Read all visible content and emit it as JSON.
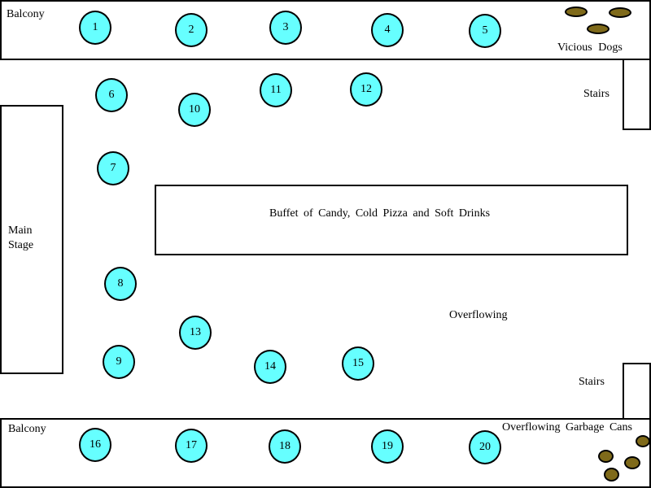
{
  "colors": {
    "table_fill": "#66ffff",
    "blob_fill": "#7f6a1a",
    "line": "#000000",
    "background": "#ffffff"
  },
  "labels": {
    "balcony_top": "Balcony",
    "balcony_bottom": "Balcony",
    "vicious_dogs": "Vicious Dogs",
    "stairs_top": "Stairs",
    "stairs_bottom": "Stairs",
    "main_stage": "Main\nStage",
    "buffet": "Buffet of Candy, Cold Pizza and Soft Drinks",
    "overflowing": "Overflowing",
    "overflowing_garbage": "Overflowing Garbage Cans"
  },
  "tables": [
    "1",
    "2",
    "3",
    "4",
    "5",
    "6",
    "7",
    "8",
    "9",
    "10",
    "11",
    "12",
    "13",
    "14",
    "15",
    "16",
    "17",
    "18",
    "19",
    "20"
  ]
}
